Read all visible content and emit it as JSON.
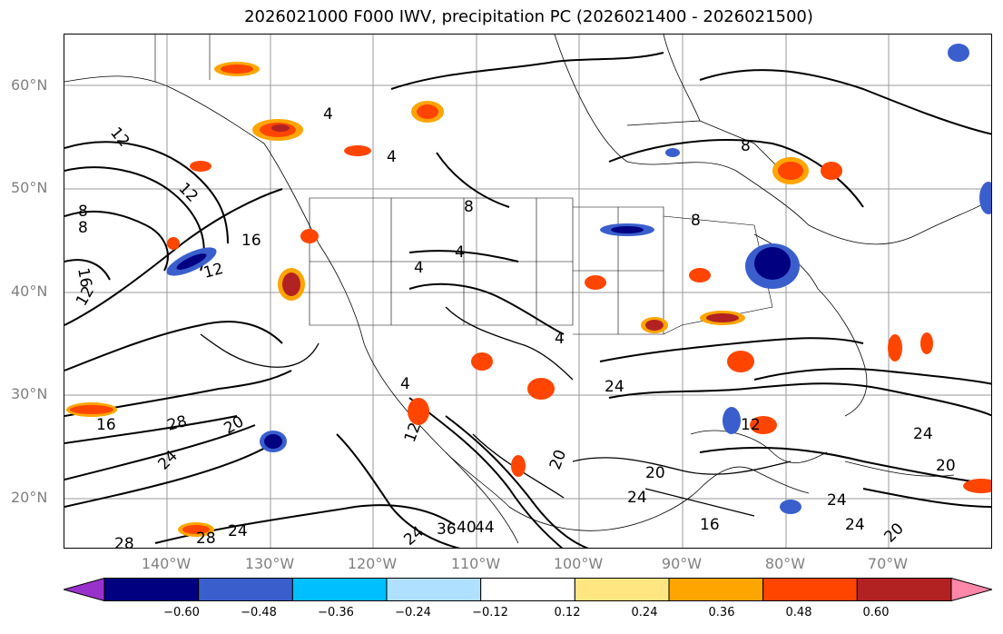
{
  "title": "2026021000 F000 IWV, precipitation PC (2026021400 - 2026021500)",
  "lat_labels": [
    "60°N",
    "50°N",
    "40°N",
    "30°N",
    "20°N"
  ],
  "lon_labels": [
    "140°W",
    "130°W",
    "120°W",
    "110°W",
    "100°W",
    "90°W",
    "80°W",
    "70°W"
  ],
  "contour_labels": [
    "12",
    "12",
    "8",
    "8",
    "16",
    "16",
    "12",
    "12",
    "4",
    "4",
    "4",
    "4",
    "4",
    "8",
    "8",
    "8",
    "12",
    "16",
    "28",
    "20",
    "24",
    "24",
    "24",
    "20",
    "24",
    "20",
    "24",
    "28",
    "28",
    "24",
    "36",
    "40",
    "44",
    "24",
    "20",
    "24",
    "20",
    "12",
    "16",
    "4"
  ],
  "colorbar": {
    "ticks": [
      "−0.60",
      "−0.48",
      "−0.36",
      "−0.24",
      "−0.12",
      "0.12",
      "0.24",
      "0.36",
      "0.48",
      "0.60"
    ],
    "colors": [
      "#9932cc",
      "#000080",
      "#3a5fcd",
      "#00bfff",
      "#b0e0ff",
      "#ffffff",
      "#ffe680",
      "#ffa500",
      "#ff4500",
      "#b22222",
      "#ff88aa"
    ]
  }
}
